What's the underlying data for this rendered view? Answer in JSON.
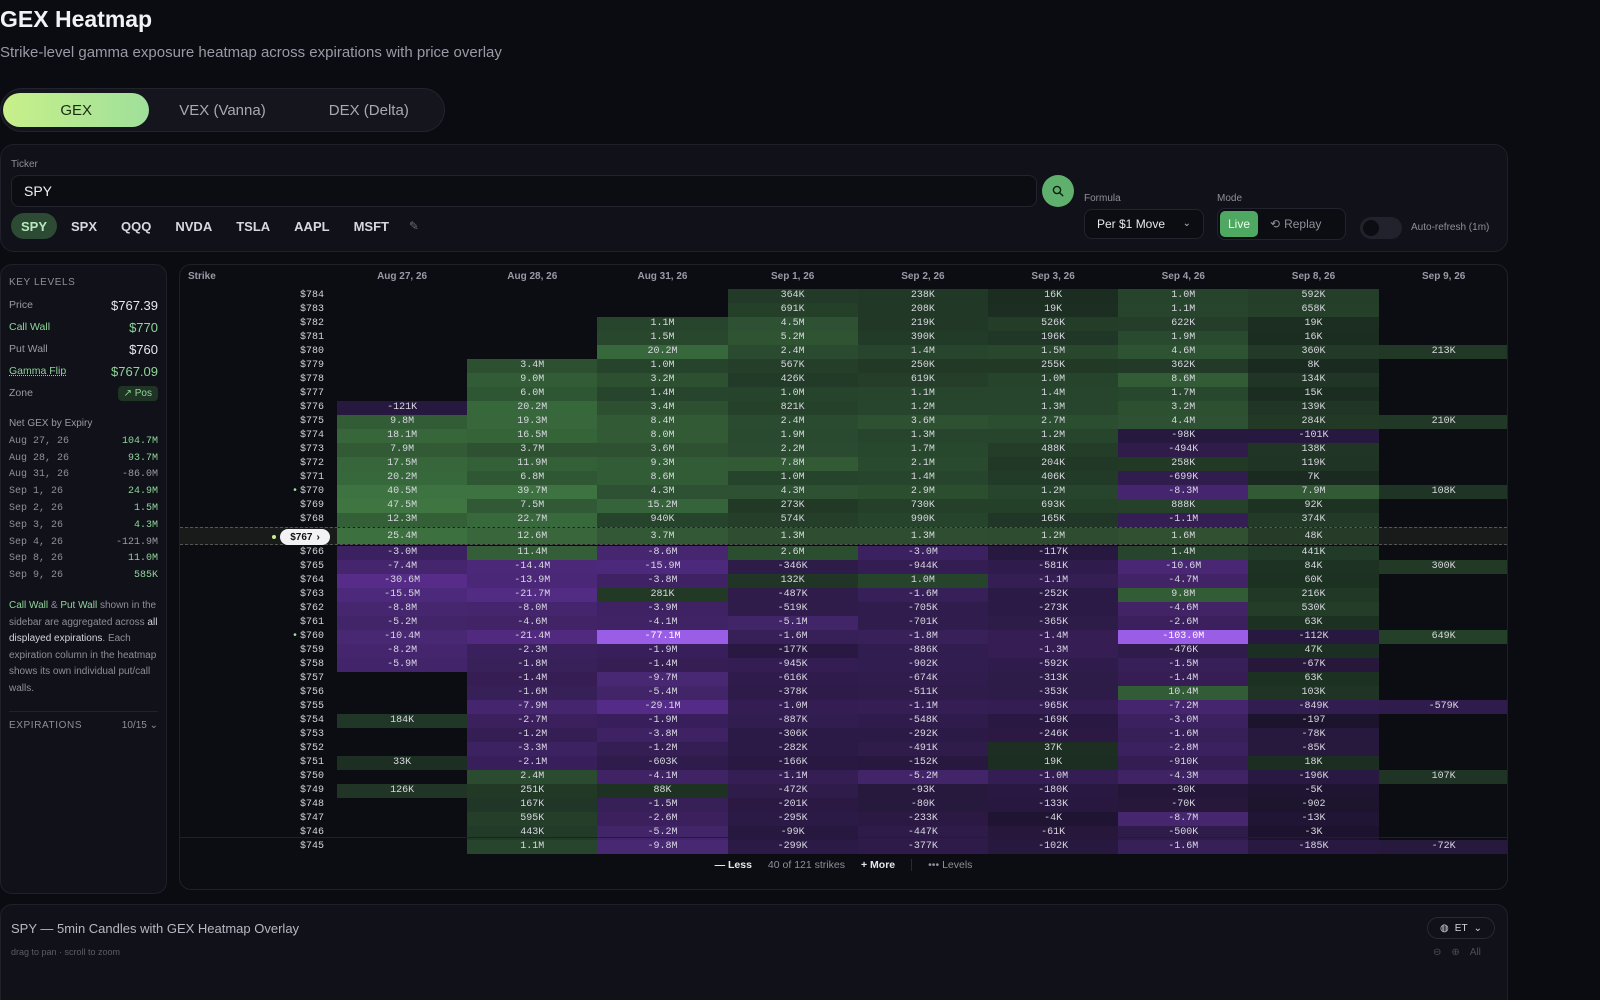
{
  "page": {
    "title": "GEX Heatmap",
    "subtitle": "Strike-level gamma exposure heatmap across expirations with price overlay"
  },
  "tabs": [
    "GEX",
    "VEX (Vanna)",
    "DEX (Delta)"
  ],
  "active_tab": "GEX",
  "controls": {
    "ticker_label": "Ticker",
    "ticker_value": "SPY",
    "quick_tickers": [
      "SPY",
      "SPX",
      "QQQ",
      "NVDA",
      "TSLA",
      "AAPL",
      "MSFT"
    ],
    "active_ticker": "SPY",
    "formula_label": "Formula",
    "formula_value": "Per $1 Move",
    "mode_label": "Mode",
    "mode_live": "Live",
    "mode_replay": "Replay",
    "autorefresh_label": "Auto-refresh (1m)",
    "autorefresh_on": false
  },
  "sidebar": {
    "key_levels_heading": "KEY LEVELS",
    "price_label": "Price",
    "price_value": "$767.39",
    "call_wall_label": "Call Wall",
    "call_wall_value": "$770",
    "put_wall_label": "Put Wall",
    "put_wall_value": "$760",
    "gamma_flip_label": "Gamma Flip",
    "gamma_flip_value": "$767.09",
    "zone_label": "Zone",
    "zone_value": "Pos",
    "net_gex_heading": "Net GEX by Expiry",
    "net_gex": [
      {
        "expiry": "Aug 27, 26",
        "value": "104.7M"
      },
      {
        "expiry": "Aug 28, 26",
        "value": "93.7M"
      },
      {
        "expiry": "Aug 31, 26",
        "value": "-86.0M"
      },
      {
        "expiry": "Sep 1, 26",
        "value": "24.9M"
      },
      {
        "expiry": "Sep 2, 26",
        "value": "1.5M"
      },
      {
        "expiry": "Sep 3, 26",
        "value": "4.3M"
      },
      {
        "expiry": "Sep 4, 26",
        "value": "-121.9M"
      },
      {
        "expiry": "Sep 8, 26",
        "value": "11.0M"
      },
      {
        "expiry": "Sep 9, 26",
        "value": "585K"
      }
    ],
    "note_call_wall": "Call Wall",
    "note_amp": " & ",
    "note_put_wall": "Put Wall",
    "note_part1": " shown in the sidebar are aggregated across ",
    "note_all": "all displayed expirations",
    "note_part2": ". Each expiration column in the heatmap shows its own individual put/call walls.",
    "expirations_label": "EXPIRATIONS",
    "expirations_count": "10/15"
  },
  "heatmap": {
    "strike_header": "Strike",
    "expiries": [
      "Aug 27, 26",
      "Aug 28, 26",
      "Aug 31, 26",
      "Sep 1, 26",
      "Sep 2, 26",
      "Sep 3, 26",
      "Sep 4, 26",
      "Sep 8, 26",
      "Sep 9, 26"
    ],
    "spot_label": "$767",
    "call_wall_strike": "$770",
    "put_wall_strike": "$760",
    "rows": [
      {
        "strike": "$784",
        "cells": [
          "",
          "",
          "",
          "364K",
          "238K",
          "16K",
          "1.0M",
          "592K",
          ""
        ]
      },
      {
        "strike": "$783",
        "cells": [
          "",
          "",
          "",
          "691K",
          "208K",
          "19K",
          "1.1M",
          "658K",
          ""
        ]
      },
      {
        "strike": "$782",
        "cells": [
          "",
          "",
          "1.1M",
          "4.5M",
          "219K",
          "526K",
          "622K",
          "19K",
          ""
        ]
      },
      {
        "strike": "$781",
        "cells": [
          "",
          "",
          "1.5M",
          "5.2M",
          "390K",
          "196K",
          "1.9M",
          "16K",
          ""
        ]
      },
      {
        "strike": "$780",
        "cells": [
          "",
          "",
          "20.2M",
          "2.4M",
          "1.4M",
          "1.5M",
          "4.6M",
          "360K",
          "213K"
        ]
      },
      {
        "strike": "$779",
        "cells": [
          "",
          "3.4M",
          "1.0M",
          "567K",
          "250K",
          "255K",
          "362K",
          "8K",
          ""
        ]
      },
      {
        "strike": "$778",
        "cells": [
          "",
          "9.0M",
          "3.2M",
          "426K",
          "619K",
          "1.0M",
          "8.6M",
          "134K",
          ""
        ]
      },
      {
        "strike": "$777",
        "cells": [
          "",
          "6.0M",
          "1.4M",
          "1.0M",
          "1.1M",
          "1.4M",
          "1.7M",
          "15K",
          ""
        ]
      },
      {
        "strike": "$776",
        "cells": [
          "-121K",
          "20.2M",
          "3.4M",
          "821K",
          "1.2M",
          "1.3M",
          "3.2M",
          "139K",
          ""
        ]
      },
      {
        "strike": "$775",
        "cells": [
          "9.8M",
          "19.3M",
          "8.4M",
          "2.4M",
          "3.6M",
          "2.7M",
          "4.4M",
          "284K",
          "210K"
        ]
      },
      {
        "strike": "$774",
        "cells": [
          "18.1M",
          "16.5M",
          "8.0M",
          "1.9M",
          "1.3M",
          "1.2M",
          "-98K",
          "-101K",
          ""
        ]
      },
      {
        "strike": "$773",
        "cells": [
          "7.9M",
          "3.7M",
          "3.6M",
          "2.2M",
          "1.7M",
          "488K",
          "-494K",
          "138K",
          ""
        ]
      },
      {
        "strike": "$772",
        "cells": [
          "17.5M",
          "11.9M",
          "9.3M",
          "7.8M",
          "2.1M",
          "204K",
          "258K",
          "119K",
          ""
        ]
      },
      {
        "strike": "$771",
        "cells": [
          "20.2M",
          "6.8M",
          "8.6M",
          "1.0M",
          "1.4M",
          "406K",
          "-699K",
          "7K",
          ""
        ]
      },
      {
        "strike": "$770",
        "cells": [
          "40.5M",
          "39.7M",
          "4.3M",
          "4.3M",
          "2.9M",
          "1.2M",
          "-8.3M",
          "7.9M",
          "108K"
        ]
      },
      {
        "strike": "$769",
        "cells": [
          "47.5M",
          "7.5M",
          "15.2M",
          "273K",
          "730K",
          "693K",
          "888K",
          "92K",
          ""
        ]
      },
      {
        "strike": "$768",
        "cells": [
          "12.3M",
          "22.7M",
          "940K",
          "574K",
          "990K",
          "165K",
          "-1.1M",
          "374K",
          ""
        ]
      },
      {
        "strike": "",
        "cells": [
          "25.4M",
          "12.6M",
          "3.7M",
          "1.3M",
          "1.3M",
          "1.2M",
          "1.6M",
          "48K",
          ""
        ]
      },
      {
        "strike": "$766",
        "cells": [
          "-3.0M",
          "11.4M",
          "-8.6M",
          "2.6M",
          "-3.0M",
          "-117K",
          "1.4M",
          "441K",
          ""
        ]
      },
      {
        "strike": "$765",
        "cells": [
          "-7.4M",
          "-14.4M",
          "-15.9M",
          "-346K",
          "-944K",
          "-581K",
          "-10.6M",
          "84K",
          "300K"
        ]
      },
      {
        "strike": "$764",
        "cells": [
          "-30.6M",
          "-13.9M",
          "-3.8M",
          "132K",
          "1.0M",
          "-1.1M",
          "-4.7M",
          "60K",
          ""
        ]
      },
      {
        "strike": "$763",
        "cells": [
          "-15.5M",
          "-21.7M",
          "281K",
          "-487K",
          "-1.6M",
          "-252K",
          "9.8M",
          "216K",
          ""
        ]
      },
      {
        "strike": "$762",
        "cells": [
          "-8.8M",
          "-8.0M",
          "-3.9M",
          "-519K",
          "-705K",
          "-273K",
          "-4.6M",
          "530K",
          ""
        ]
      },
      {
        "strike": "$761",
        "cells": [
          "-5.2M",
          "-4.6M",
          "-4.1M",
          "-5.1M",
          "-701K",
          "-365K",
          "-2.6M",
          "63K",
          ""
        ]
      },
      {
        "strike": "$760",
        "cells": [
          "-10.4M",
          "-21.4M",
          "-77.1M",
          "-1.6M",
          "-1.8M",
          "-1.4M",
          "-103.0M",
          "-112K",
          "649K"
        ]
      },
      {
        "strike": "$759",
        "cells": [
          "-8.2M",
          "-2.3M",
          "-1.9M",
          "-177K",
          "-886K",
          "-1.3M",
          "-476K",
          "47K",
          ""
        ]
      },
      {
        "strike": "$758",
        "cells": [
          "-5.9M",
          "-1.8M",
          "-1.4M",
          "-945K",
          "-902K",
          "-592K",
          "-1.5M",
          "-67K",
          ""
        ]
      },
      {
        "strike": "$757",
        "cells": [
          "",
          "-1.4M",
          "-9.7M",
          "-616K",
          "-674K",
          "-313K",
          "-1.4M",
          "63K",
          ""
        ]
      },
      {
        "strike": "$756",
        "cells": [
          "",
          "-1.6M",
          "-5.4M",
          "-378K",
          "-511K",
          "-353K",
          "10.4M",
          "103K",
          ""
        ]
      },
      {
        "strike": "$755",
        "cells": [
          "",
          "-7.9M",
          "-29.1M",
          "-1.0M",
          "-1.1M",
          "-965K",
          "-7.2M",
          "-849K",
          "-579K"
        ]
      },
      {
        "strike": "$754",
        "cells": [
          "184K",
          "-2.7M",
          "-1.9M",
          "-887K",
          "-548K",
          "-169K",
          "-3.0M",
          "-197",
          ""
        ]
      },
      {
        "strike": "$753",
        "cells": [
          "",
          "-1.2M",
          "-3.8M",
          "-306K",
          "-292K",
          "-246K",
          "-1.6M",
          "-78K",
          ""
        ]
      },
      {
        "strike": "$752",
        "cells": [
          "",
          "-3.3M",
          "-1.2M",
          "-282K",
          "-491K",
          "37K",
          "-2.8M",
          "-85K",
          ""
        ]
      },
      {
        "strike": "$751",
        "cells": [
          "33K",
          "-2.1M",
          "-603K",
          "-166K",
          "-152K",
          "19K",
          "-910K",
          "18K",
          ""
        ]
      },
      {
        "strike": "$750",
        "cells": [
          "",
          "2.4M",
          "-4.1M",
          "-1.1M",
          "-5.2M",
          "-1.0M",
          "-4.3M",
          "-196K",
          "107K"
        ]
      },
      {
        "strike": "$749",
        "cells": [
          "126K",
          "251K",
          "88K",
          "-472K",
          "-93K",
          "-180K",
          "-30K",
          "-5K",
          ""
        ]
      },
      {
        "strike": "$748",
        "cells": [
          "",
          "167K",
          "-1.5M",
          "-201K",
          "-80K",
          "-133K",
          "-70K",
          "-902",
          ""
        ]
      },
      {
        "strike": "$747",
        "cells": [
          "",
          "595K",
          "-2.6M",
          "-295K",
          "-233K",
          "-4K",
          "-8.7M",
          "-13K",
          ""
        ]
      },
      {
        "strike": "$746",
        "cells": [
          "",
          "443K",
          "-5.2M",
          "-99K",
          "-447K",
          "-61K",
          "-500K",
          "-3K",
          ""
        ]
      },
      {
        "strike": "$745",
        "cells": [
          "",
          "1.1M",
          "-9.8M",
          "-299K",
          "-377K",
          "-102K",
          "-1.6M",
          "-185K",
          "-72K"
        ]
      }
    ],
    "footer_less": "Less",
    "footer_count": "40 of 121 strikes",
    "footer_more": "More",
    "footer_levels": "Levels"
  },
  "chart_panel": {
    "title": "SPY — 5min Candles with GEX Heatmap Overlay",
    "hint": "drag to pan · scroll to zoom",
    "timezone": "ET",
    "all_label": "All"
  },
  "colors": {
    "accent_green": "#9fe09a",
    "positive": "#4d8a4f",
    "negative": "#8a4fd0"
  }
}
